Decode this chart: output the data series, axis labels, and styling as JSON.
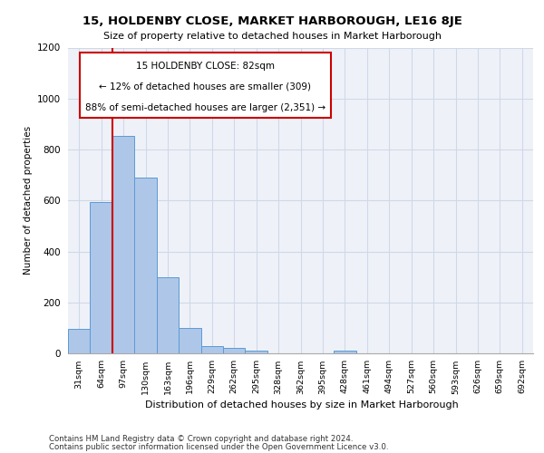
{
  "title": "15, HOLDENBY CLOSE, MARKET HARBOROUGH, LE16 8JE",
  "subtitle": "Size of property relative to detached houses in Market Harborough",
  "xlabel": "Distribution of detached houses by size in Market Harborough",
  "ylabel": "Number of detached properties",
  "footer_line1": "Contains HM Land Registry data © Crown copyright and database right 2024.",
  "footer_line2": "Contains public sector information licensed under the Open Government Licence v3.0.",
  "bar_color": "#aec6e8",
  "bar_edge_color": "#5b9bd5",
  "annotation_box_color": "#cc0000",
  "vline_color": "#cc0000",
  "grid_color": "#d0d8e8",
  "bg_color": "#eef2f8",
  "categories": [
    "31sqm",
    "64sqm",
    "97sqm",
    "130sqm",
    "163sqm",
    "196sqm",
    "229sqm",
    "262sqm",
    "295sqm",
    "328sqm",
    "362sqm",
    "395sqm",
    "428sqm",
    "461sqm",
    "494sqm",
    "527sqm",
    "560sqm",
    "593sqm",
    "626sqm",
    "659sqm",
    "692sqm"
  ],
  "bar_heights": [
    95,
    595,
    855,
    690,
    300,
    100,
    30,
    22,
    12,
    0,
    0,
    0,
    12,
    0,
    0,
    0,
    0,
    0,
    0,
    0,
    0
  ],
  "ylim": [
    0,
    1200
  ],
  "yticks": [
    0,
    200,
    400,
    600,
    800,
    1000,
    1200
  ],
  "vline_x": 1.5,
  "annotation_line1": "15 HOLDENBY CLOSE: 82sqm",
  "annotation_line2": "← 12% of detached houses are smaller (309)",
  "annotation_line3": "88% of semi-detached houses are larger (2,351) →"
}
